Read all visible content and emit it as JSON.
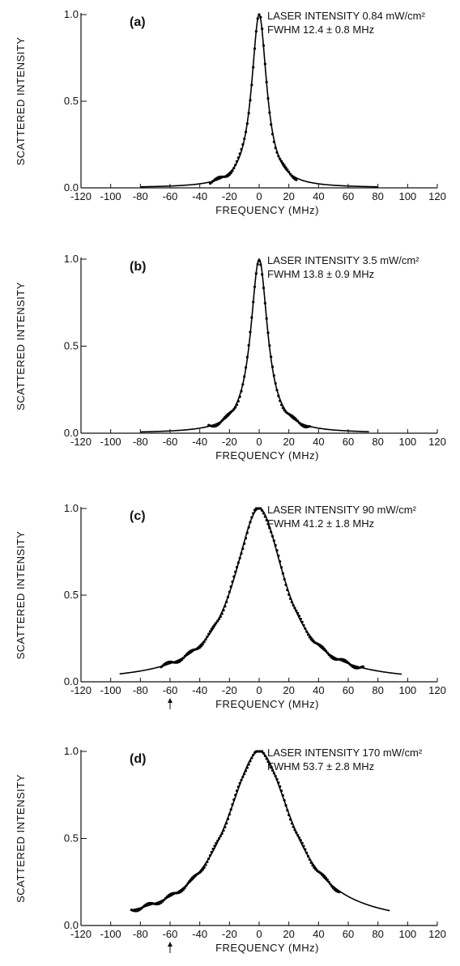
{
  "chart_data": [
    {
      "type": "line",
      "panel": "(a)",
      "title": "",
      "xlabel": "FREQUENCY (MHz)",
      "ylabel": "SCATTERED INTENSITY",
      "xlim": [
        -120,
        120
      ],
      "ylim": [
        0,
        1.0
      ],
      "x_ticks": [
        -120,
        -100,
        -80,
        -60,
        -40,
        -20,
        0,
        20,
        40,
        60,
        80,
        100,
        120
      ],
      "y_ticks": [
        0.0,
        0.5,
        1.0
      ],
      "x_tick_labels": [
        "-120",
        "-100",
        "-80",
        "-60",
        "-40",
        "-20",
        "0",
        "20",
        "40",
        "60",
        "80",
        "100",
        "120"
      ],
      "y_tick_labels": [
        "0.0",
        "0.5",
        "1.0"
      ],
      "annotations": [
        "LASER INTENSITY 0.84 mW/cm²",
        "FWHM 12.4 ± 0.8 MHz"
      ],
      "fwhm_mhz": 12.4,
      "fit_range": [
        -80,
        80
      ],
      "points_range": [
        -33,
        25
      ],
      "arrow_x": null,
      "grid": false,
      "series": [
        {
          "kind": "fit-curve",
          "x": [
            -80,
            -60,
            -40,
            -30,
            -20,
            -15,
            -10,
            -6,
            -4,
            -2,
            0,
            2,
            4,
            6,
            10,
            15,
            20,
            30,
            40,
            60,
            80
          ],
          "y": [
            0.01,
            0.01,
            0.02,
            0.04,
            0.09,
            0.15,
            0.28,
            0.52,
            0.71,
            0.91,
            1.0,
            0.91,
            0.71,
            0.52,
            0.28,
            0.15,
            0.09,
            0.04,
            0.02,
            0.01,
            0.01
          ]
        },
        {
          "kind": "measured-points",
          "x": [
            -33,
            -30,
            -28,
            -25,
            -22,
            -20,
            -18,
            -16,
            -14,
            -12,
            -10,
            -8,
            -7,
            -6,
            -5,
            -4,
            -3,
            -2,
            -1,
            0,
            1,
            2,
            3,
            4,
            5,
            6,
            7,
            8,
            10,
            12,
            14,
            16,
            18,
            20,
            22,
            25
          ],
          "y": [
            0.05,
            0.05,
            0.06,
            0.07,
            0.08,
            0.09,
            0.1,
            0.13,
            0.16,
            0.21,
            0.28,
            0.37,
            0.44,
            0.51,
            0.6,
            0.7,
            0.8,
            0.91,
            0.97,
            1.0,
            0.98,
            0.91,
            0.8,
            0.7,
            0.6,
            0.51,
            0.44,
            0.37,
            0.27,
            0.21,
            0.15,
            0.12,
            0.1,
            0.08,
            0.08,
            0.07
          ]
        }
      ]
    },
    {
      "type": "line",
      "panel": "(b)",
      "title": "",
      "xlabel": "FREQUENCY (MHz)",
      "ylabel": "SCATTERED INTENSITY",
      "xlim": [
        -120,
        120
      ],
      "ylim": [
        0,
        1.0
      ],
      "x_ticks": [
        -120,
        -100,
        -80,
        -60,
        -40,
        -20,
        0,
        20,
        40,
        60,
        80,
        100,
        120
      ],
      "y_ticks": [
        0.0,
        0.5,
        1.0
      ],
      "x_tick_labels": [
        "-120",
        "-100",
        "-80",
        "-60",
        "-40",
        "-20",
        "0",
        "20",
        "40",
        "60",
        "80",
        "100",
        "120"
      ],
      "y_tick_labels": [
        "0.0",
        "0.5",
        "1.0"
      ],
      "annotations": [
        "LASER INTENSITY 3.5 mW/cm²",
        "FWHM 13.8 ± 0.9 MHz"
      ],
      "fwhm_mhz": 13.8,
      "fit_range": [
        -80,
        74
      ],
      "points_range": [
        -34,
        34
      ],
      "arrow_x": null,
      "grid": false,
      "series": [
        {
          "kind": "fit-curve",
          "x": [
            -80,
            -60,
            -40,
            -30,
            -20,
            -15,
            -10,
            -6,
            -4,
            -2,
            0,
            2,
            4,
            6,
            10,
            15,
            20,
            30,
            40,
            60,
            74
          ],
          "y": [
            0.01,
            0.01,
            0.03,
            0.05,
            0.11,
            0.18,
            0.33,
            0.57,
            0.75,
            0.92,
            1.0,
            0.92,
            0.75,
            0.57,
            0.33,
            0.18,
            0.11,
            0.05,
            0.03,
            0.01,
            0.01
          ]
        },
        {
          "kind": "measured-points",
          "x": [
            -34,
            -31,
            -28,
            -25,
            -22,
            -20,
            -18,
            -16,
            -14,
            -12,
            -10,
            -8,
            -6,
            -5,
            -4,
            -3,
            -2,
            -1,
            0,
            1,
            2,
            3,
            4,
            5,
            6,
            8,
            10,
            12,
            14,
            16,
            18,
            20,
            23,
            26,
            30,
            34
          ],
          "y": [
            0.06,
            0.06,
            0.07,
            0.08,
            0.09,
            0.11,
            0.13,
            0.16,
            0.2,
            0.26,
            0.33,
            0.43,
            0.57,
            0.65,
            0.75,
            0.84,
            0.92,
            0.98,
            1.0,
            0.98,
            0.92,
            0.84,
            0.75,
            0.65,
            0.57,
            0.43,
            0.32,
            0.25,
            0.19,
            0.15,
            0.12,
            0.1,
            0.08,
            0.06,
            0.04,
            0.04
          ]
        }
      ]
    },
    {
      "type": "line",
      "panel": "(c)",
      "title": "",
      "xlabel": "FREQUENCY (MHz)",
      "ylabel": "SCATTERED INTENSITY",
      "xlim": [
        -120,
        120
      ],
      "ylim": [
        0,
        1.0
      ],
      "x_ticks": [
        -120,
        -100,
        -80,
        -60,
        -40,
        -20,
        0,
        20,
        40,
        60,
        80,
        100,
        120
      ],
      "y_ticks": [
        0.0,
        0.5,
        1.0
      ],
      "x_tick_labels": [
        "-120",
        "-100",
        "-80",
        "-60",
        "-40",
        "-20",
        "0",
        "20",
        "40",
        "60",
        "80",
        "100",
        "120"
      ],
      "y_tick_labels": [
        "0.0",
        "0.5",
        "1.0"
      ],
      "annotations": [
        "LASER INTENSITY 90 mW/cm²",
        "FWHM 41.2 ± 1.8 MHz"
      ],
      "fwhm_mhz": 41.2,
      "fit_range": [
        -94,
        96
      ],
      "points_range": [
        -66,
        70
      ],
      "arrow_x": -60,
      "grid": false,
      "series": [
        {
          "kind": "fit-curve",
          "x": [
            -94,
            -80,
            -60,
            -40,
            -30,
            -20,
            -10,
            0,
            10,
            20,
            30,
            40,
            60,
            80,
            96
          ],
          "y": [
            0.04,
            0.06,
            0.1,
            0.21,
            0.32,
            0.51,
            0.81,
            1.0,
            0.81,
            0.51,
            0.32,
            0.21,
            0.1,
            0.06,
            0.04
          ]
        },
        {
          "kind": "measured-points",
          "x": [
            -66,
            -62,
            -58,
            -54,
            -50,
            -46,
            -42,
            -38,
            -34,
            -30,
            -26,
            -22,
            -18,
            -14,
            -10,
            -6,
            -2,
            0,
            2,
            6,
            10,
            14,
            18,
            22,
            26,
            30,
            34,
            38,
            42,
            46,
            50,
            54,
            58,
            62,
            66,
            70
          ],
          "y": [
            0.07,
            0.08,
            0.09,
            0.11,
            0.13,
            0.16,
            0.19,
            0.23,
            0.27,
            0.33,
            0.4,
            0.48,
            0.58,
            0.69,
            0.81,
            0.91,
            0.98,
            1.0,
            0.99,
            0.93,
            0.84,
            0.72,
            0.61,
            0.5,
            0.41,
            0.33,
            0.27,
            0.22,
            0.18,
            0.15,
            0.12,
            0.1,
            0.09,
            0.08,
            0.07,
            0.06
          ]
        }
      ]
    },
    {
      "type": "line",
      "panel": "(d)",
      "title": "",
      "xlabel": "FREQUENCY (MHz)",
      "ylabel": "SCATTERED INTENSITY",
      "xlim": [
        -120,
        120
      ],
      "ylim": [
        0,
        1.0
      ],
      "x_ticks": [
        -120,
        -100,
        -80,
        -60,
        -40,
        -20,
        0,
        20,
        40,
        60,
        80,
        100,
        120
      ],
      "y_ticks": [
        0.0,
        0.5,
        1.0
      ],
      "x_tick_labels": [
        "-120",
        "-100",
        "-80",
        "-60",
        "-40",
        "-20",
        "0",
        "20",
        "40",
        "60",
        "80",
        "100",
        "120"
      ],
      "y_tick_labels": [
        "0.0",
        "0.5",
        "1.0"
      ],
      "annotations": [
        "LASER INTENSITY 170 mW/cm²",
        "FWHM 53.7 ± 2.8 MHz"
      ],
      "fwhm_mhz": 53.7,
      "fit_range": [
        -86,
        88
      ],
      "points_range": [
        -86,
        54
      ],
      "arrow_x": -60,
      "grid": false,
      "series": [
        {
          "kind": "fit-curve",
          "x": [
            -86,
            -80,
            -60,
            -40,
            -30,
            -20,
            -10,
            0,
            10,
            20,
            30,
            40,
            60,
            80,
            88
          ],
          "y": [
            0.07,
            0.08,
            0.14,
            0.27,
            0.39,
            0.59,
            0.85,
            1.0,
            0.85,
            0.59,
            0.39,
            0.27,
            0.14,
            0.08,
            0.07
          ]
        },
        {
          "kind": "measured-points",
          "x": [
            -86,
            -82,
            -78,
            -74,
            -70,
            -66,
            -62,
            -58,
            -54,
            -50,
            -46,
            -42,
            -38,
            -34,
            -30,
            -26,
            -22,
            -18,
            -14,
            -10,
            -6,
            -2,
            0,
            2,
            6,
            10,
            14,
            18,
            22,
            26,
            30,
            34,
            38,
            42,
            46,
            50,
            54
          ],
          "y": [
            0.08,
            0.09,
            0.1,
            0.11,
            0.12,
            0.13,
            0.14,
            0.16,
            0.18,
            0.2,
            0.22,
            0.25,
            0.29,
            0.33,
            0.38,
            0.45,
            0.53,
            0.62,
            0.72,
            0.84,
            0.93,
            0.99,
            1.0,
            0.99,
            0.94,
            0.86,
            0.75,
            0.64,
            0.54,
            0.46,
            0.39,
            0.33,
            0.28,
            0.24,
            0.22,
            0.21,
            0.2
          ]
        }
      ]
    }
  ]
}
